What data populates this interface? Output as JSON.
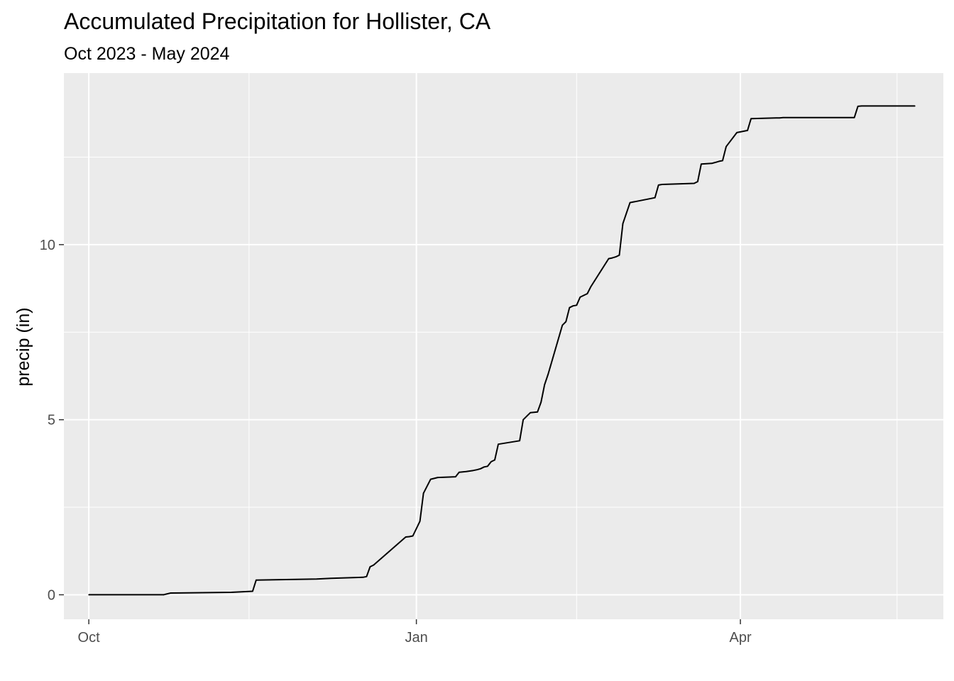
{
  "chart_data": {
    "type": "line",
    "title": "Accumulated Precipitation for Hollister, CA",
    "subtitle": "Oct 2023 - May 2024",
    "xlabel": "",
    "ylabel": "precip (in)",
    "x_ticks": [
      {
        "label": "Oct",
        "date": "2023-10-01"
      },
      {
        "label": "Jan",
        "date": "2024-01-01"
      },
      {
        "label": "Apr",
        "date": "2024-04-01"
      }
    ],
    "x_minor_dates": [
      "2023-11-15",
      "2024-02-15",
      "2024-05-15"
    ],
    "y_ticks": [
      0,
      5,
      10
    ],
    "y_minor": [
      2.5,
      7.5,
      12.5
    ],
    "xlim": [
      "2023-09-24",
      "2024-05-28"
    ],
    "ylim": [
      -0.7,
      14.9
    ],
    "grid": true,
    "series": [
      {
        "color": "#000000",
        "x": [
          "2023-10-01",
          "2023-10-22",
          "2023-10-24",
          "2023-11-10",
          "2023-11-16",
          "2023-11-17",
          "2023-12-04",
          "2023-12-08",
          "2023-12-17",
          "2023-12-18",
          "2023-12-19",
          "2023-12-20",
          "2023-12-29",
          "2023-12-30",
          "2023-12-31",
          "2024-01-02",
          "2024-01-03",
          "2024-01-05",
          "2024-01-07",
          "2024-01-12",
          "2024-01-13",
          "2024-01-15",
          "2024-01-17",
          "2024-01-18",
          "2024-01-19",
          "2024-01-20",
          "2024-01-21",
          "2024-01-22",
          "2024-01-23",
          "2024-01-24",
          "2024-01-30",
          "2024-01-31",
          "2024-02-01",
          "2024-02-02",
          "2024-02-03",
          "2024-02-04",
          "2024-02-05",
          "2024-02-06",
          "2024-02-07",
          "2024-02-11",
          "2024-02-12",
          "2024-02-13",
          "2024-02-14",
          "2024-02-15",
          "2024-02-16",
          "2024-02-17",
          "2024-02-18",
          "2024-02-19",
          "2024-02-24",
          "2024-02-25",
          "2024-02-26",
          "2024-02-27",
          "2024-02-28",
          "2024-03-01",
          "2024-03-02",
          "2024-03-03",
          "2024-03-04",
          "2024-03-05",
          "2024-03-06",
          "2024-03-07",
          "2024-03-08",
          "2024-03-09",
          "2024-03-10",
          "2024-03-19",
          "2024-03-20",
          "2024-03-21",
          "2024-03-24",
          "2024-03-25",
          "2024-03-26",
          "2024-03-27",
          "2024-03-28",
          "2024-03-31",
          "2024-04-01",
          "2024-04-02",
          "2024-04-03",
          "2024-04-04",
          "2024-04-11",
          "2024-04-12",
          "2024-04-13",
          "2024-05-03",
          "2024-05-04",
          "2024-05-05",
          "2024-05-20"
        ],
        "y": [
          0,
          0,
          0.05,
          0.07,
          0.1,
          0.42,
          0.45,
          0.47,
          0.5,
          0.52,
          0.8,
          0.85,
          1.65,
          1.66,
          1.68,
          2.1,
          2.9,
          3.3,
          3.35,
          3.37,
          3.5,
          3.52,
          3.55,
          3.57,
          3.6,
          3.65,
          3.67,
          3.8,
          3.85,
          4.3,
          4.4,
          5.0,
          5.1,
          5.2,
          5.21,
          5.22,
          5.5,
          6.0,
          6.3,
          7.7,
          7.8,
          8.2,
          8.25,
          8.27,
          8.5,
          8.55,
          8.6,
          8.8,
          9.6,
          9.62,
          9.65,
          9.7,
          10.6,
          11.2,
          11.22,
          11.24,
          11.26,
          11.28,
          11.3,
          11.32,
          11.34,
          11.7,
          11.72,
          11.75,
          11.8,
          12.3,
          12.32,
          12.35,
          12.38,
          12.4,
          12.8,
          13.2,
          13.22,
          13.24,
          13.26,
          13.6,
          13.62,
          13.62,
          13.63,
          13.63,
          13.95,
          13.96,
          13.96
        ]
      }
    ]
  }
}
